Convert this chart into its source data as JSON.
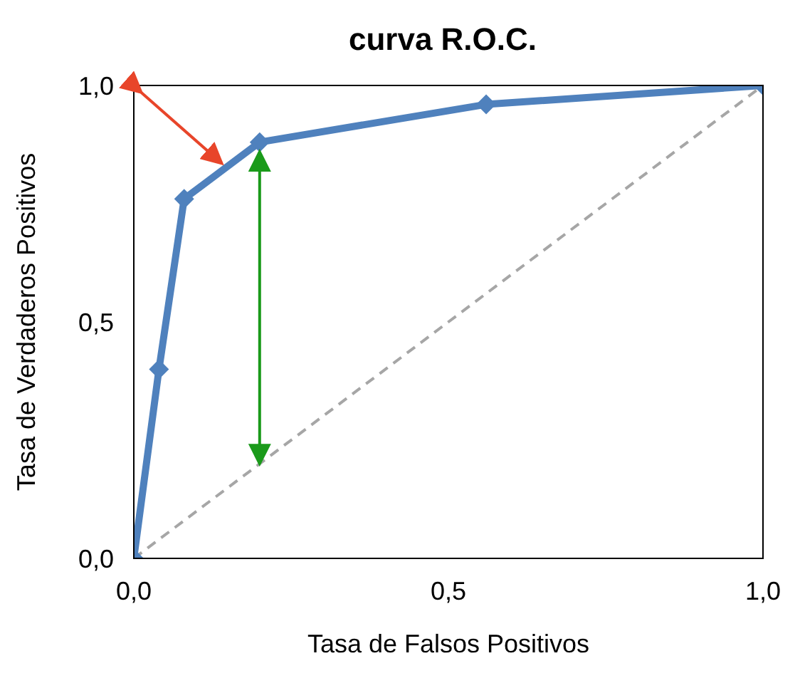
{
  "chart_data": {
    "type": "line",
    "title": "curva R.O.C.",
    "xlabel": "Tasa de Falsos Positivos",
    "ylabel": "Tasa de Verdaderos Positivos",
    "xlim": [
      0,
      1
    ],
    "ylim": [
      0,
      1
    ],
    "xticks": [
      {
        "value": 0,
        "label": "0,0"
      },
      {
        "value": 0.5,
        "label": "0,5"
      },
      {
        "value": 1,
        "label": "1,0"
      }
    ],
    "yticks": [
      {
        "value": 0,
        "label": "0,0"
      },
      {
        "value": 0.5,
        "label": "0,5"
      },
      {
        "value": 1,
        "label": "1,0"
      }
    ],
    "series": [
      {
        "color": "#4f81bd",
        "marker": "diamond",
        "line_style": "solid",
        "x": [
          0,
          0.04,
          0.08,
          0.2,
          0.56,
          1
        ],
        "values": [
          0,
          0.4,
          0.76,
          0.88,
          0.96,
          1
        ]
      },
      {
        "color": "#a6a6a6",
        "marker": "none",
        "line_style": "dashed",
        "x": [
          0,
          1
        ],
        "values": [
          0,
          1
        ]
      }
    ]
  }
}
